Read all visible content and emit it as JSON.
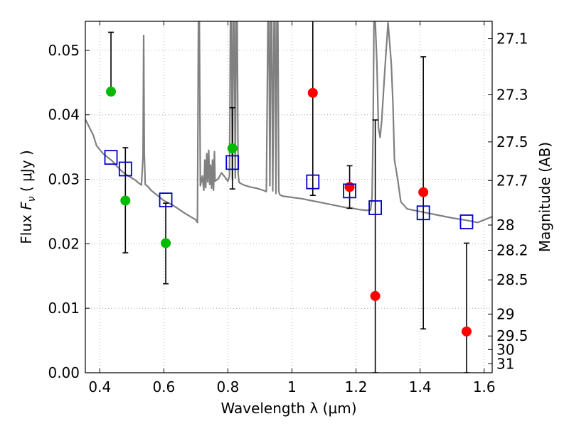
{
  "chart_data": {
    "type": "scatter",
    "xlabel": "Wavelength  λ (μm)",
    "ylabel": "Flux  F_ν  ( μJy )",
    "y2label": "Magnitude (AB)",
    "xlim": [
      0.355,
      1.625
    ],
    "ylim": [
      0.0,
      0.0545
    ],
    "grid": true,
    "x_ticks": [
      {
        "v": 0.4,
        "label": "0.4"
      },
      {
        "v": 0.6,
        "label": "0.6"
      },
      {
        "v": 0.8,
        "label": "0.8"
      },
      {
        "v": 1.0,
        "label": "1"
      },
      {
        "v": 1.2,
        "label": "1.2"
      },
      {
        "v": 1.4,
        "label": "1.4"
      },
      {
        "v": 1.6,
        "label": "1.6"
      }
    ],
    "y_ticks": [
      {
        "v": 0.0,
        "label": "0.00"
      },
      {
        "v": 0.01,
        "label": "0.01"
      },
      {
        "v": 0.02,
        "label": "0.02"
      },
      {
        "v": 0.03,
        "label": "0.03"
      },
      {
        "v": 0.04,
        "label": "0.04"
      },
      {
        "v": 0.05,
        "label": "0.05"
      }
    ],
    "mag_ticks": [
      {
        "v": 0.0518,
        "label": "27.1"
      },
      {
        "v": 0.0431,
        "label": "27.3"
      },
      {
        "v": 0.0358,
        "label": "27.5"
      },
      {
        "v": 0.0298,
        "label": "27.7"
      },
      {
        "v": 0.0229,
        "label": "28"
      },
      {
        "v": 0.019,
        "label": "28.2"
      },
      {
        "v": 0.0144,
        "label": "28.5"
      },
      {
        "v": 0.0091,
        "label": "29"
      },
      {
        "v": 0.0057,
        "label": "29.5"
      },
      {
        "v": 0.0036,
        "label": "30"
      },
      {
        "v": 0.0014,
        "label": "31"
      }
    ],
    "colors": {
      "model": "#808080",
      "model_points": "#0000cc",
      "optical": "#00bb00",
      "infrared": "#ff0000",
      "errorbar": "#000000",
      "grid": "#999999"
    },
    "series": [
      {
        "role": "observed-optical",
        "marker": "circle",
        "color": "#00bb00",
        "points": [
          {
            "x": 0.435,
            "y": 0.0436,
            "ylo": 0.0436,
            "yhi": 0.0528
          },
          {
            "x": 0.48,
            "y": 0.0267,
            "ylo": 0.0186,
            "yhi": 0.0349
          },
          {
            "x": 0.606,
            "y": 0.0201,
            "ylo": 0.0138,
            "yhi": 0.0263
          },
          {
            "x": 0.814,
            "y": 0.0348,
            "ylo": 0.0285,
            "yhi": 0.0411
          }
        ]
      },
      {
        "role": "observed-infrared",
        "marker": "circle",
        "color": "#ff0000",
        "points": [
          {
            "x": 1.065,
            "y": 0.0434,
            "ylo": 0.0275,
            "yhi": 0.056
          },
          {
            "x": 1.18,
            "y": 0.0288,
            "ylo": 0.0255,
            "yhi": 0.0321
          },
          {
            "x": 1.26,
            "y": 0.0119,
            "ylo": 0.0,
            "yhi": 0.0392
          },
          {
            "x": 1.41,
            "y": 0.028,
            "ylo": 0.0068,
            "yhi": 0.049
          },
          {
            "x": 1.545,
            "y": 0.0064,
            "ylo": 0.0,
            "yhi": 0.0201
          }
        ]
      },
      {
        "role": "model-synthetic",
        "marker": "square-open",
        "color": "#0000cc",
        "points": [
          {
            "x": 0.435,
            "y": 0.0334
          },
          {
            "x": 0.48,
            "y": 0.0316
          },
          {
            "x": 0.606,
            "y": 0.0268
          },
          {
            "x": 0.814,
            "y": 0.0326
          },
          {
            "x": 1.065,
            "y": 0.0296
          },
          {
            "x": 1.18,
            "y": 0.0282
          },
          {
            "x": 1.26,
            "y": 0.0256
          },
          {
            "x": 1.41,
            "y": 0.0248
          },
          {
            "x": 1.545,
            "y": 0.0234
          }
        ]
      }
    ],
    "model_spectrum": {
      "x": [
        0.355,
        0.37,
        0.38,
        0.39,
        0.4,
        0.41,
        0.42,
        0.43,
        0.44,
        0.45,
        0.46,
        0.47,
        0.48,
        0.49,
        0.5,
        0.51,
        0.52,
        0.53,
        0.535,
        0.537,
        0.539,
        0.542,
        0.55,
        0.56,
        0.57,
        0.58,
        0.59,
        0.6,
        0.62,
        0.64,
        0.66,
        0.68,
        0.7,
        0.705,
        0.708,
        0.711,
        0.714,
        0.72,
        0.725,
        0.728,
        0.731,
        0.734,
        0.737,
        0.74,
        0.743,
        0.746,
        0.749,
        0.752,
        0.755,
        0.758,
        0.76,
        0.77,
        0.78,
        0.79,
        0.8,
        0.805,
        0.808,
        0.811,
        0.814,
        0.817,
        0.82,
        0.823,
        0.826,
        0.829,
        0.832,
        0.835,
        0.85,
        0.87,
        0.89,
        0.91,
        0.92,
        0.925,
        0.928,
        0.931,
        0.934,
        0.937,
        0.94,
        0.944,
        0.947,
        0.95,
        0.953,
        0.956,
        0.959,
        0.962,
        0.97,
        1.0,
        1.03,
        1.06,
        1.09,
        1.12,
        1.15,
        1.17,
        1.19,
        1.21,
        1.23,
        1.245,
        1.25,
        1.253,
        1.256,
        1.26,
        1.265,
        1.27,
        1.275,
        1.28,
        1.29,
        1.3,
        1.31,
        1.315,
        1.32,
        1.33,
        1.34,
        1.36,
        1.4,
        1.45,
        1.5,
        1.55,
        1.58,
        1.6,
        1.625
      ],
      "y": [
        0.0393,
        0.0378,
        0.0368,
        0.0352,
        0.0346,
        0.034,
        0.0336,
        0.0332,
        0.0328,
        0.0322,
        0.0317,
        0.0312,
        0.0308,
        0.0305,
        0.0302,
        0.0299,
        0.0295,
        0.0291,
        0.0335,
        0.0523,
        0.034,
        0.0292,
        0.0289,
        0.0283,
        0.0279,
        0.0275,
        0.0271,
        0.0267,
        0.0262,
        0.0256,
        0.0249,
        0.0243,
        0.0237,
        0.0233,
        0.0545,
        0.0545,
        0.029,
        0.0305,
        0.0283,
        0.033,
        0.0287,
        0.034,
        0.0296,
        0.0345,
        0.0292,
        0.0322,
        0.0286,
        0.033,
        0.0283,
        0.0343,
        0.0297,
        0.0301,
        0.031,
        0.0304,
        0.0297,
        0.0305,
        0.0545,
        0.0545,
        0.03,
        0.0545,
        0.0545,
        0.0302,
        0.0545,
        0.0545,
        0.0308,
        0.0295,
        0.0291,
        0.0288,
        0.0286,
        0.0283,
        0.0281,
        0.0545,
        0.0545,
        0.029,
        0.0545,
        0.0545,
        0.0282,
        0.0545,
        0.0545,
        0.0278,
        0.0545,
        0.0545,
        0.0281,
        0.0276,
        0.0274,
        0.0272,
        0.027,
        0.0267,
        0.0264,
        0.0261,
        0.0258,
        0.0256,
        0.0255,
        0.0253,
        0.0252,
        0.0252,
        0.0272,
        0.037,
        0.0545,
        0.0545,
        0.048,
        0.038,
        0.0365,
        0.039,
        0.047,
        0.0543,
        0.048,
        0.042,
        0.033,
        0.03,
        0.0265,
        0.0254,
        0.025,
        0.0245,
        0.024,
        0.0236,
        0.0233,
        0.0237,
        0.0242
      ]
    }
  }
}
